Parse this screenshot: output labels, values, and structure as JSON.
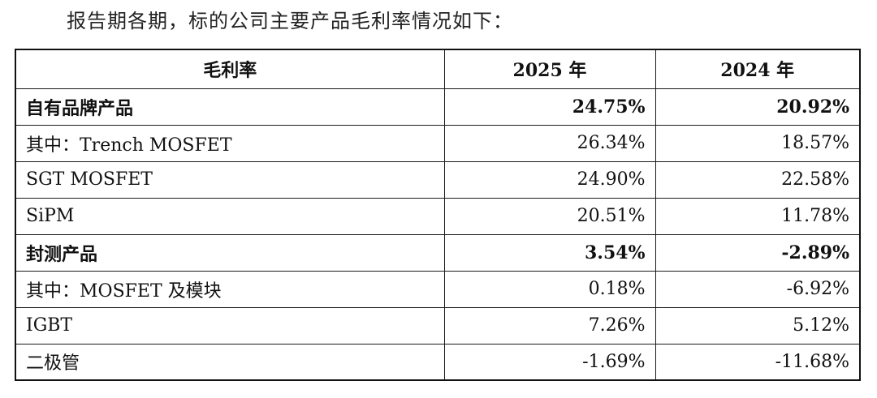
{
  "intro_text": "报告期各期，标的公司主要产品毛利率情况如下：",
  "table": {
    "headers": [
      "毛利率",
      "2025 年",
      "2024 年"
    ],
    "rows": [
      {
        "label": "自有品牌产品",
        "v2025": "24.75%",
        "v2024": "20.92%",
        "bold": true
      },
      {
        "label": "其中：Trench MOSFET",
        "v2025": "26.34%",
        "v2024": "18.57%",
        "bold": false
      },
      {
        "label": "SGT MOSFET",
        "v2025": "24.90%",
        "v2024": "22.58%",
        "bold": false
      },
      {
        "label": "SiPM",
        "v2025": "20.51%",
        "v2024": "11.78%",
        "bold": false
      },
      {
        "label": "封测产品",
        "v2025": "3.54%",
        "v2024": "-2.89%",
        "bold": true
      },
      {
        "label": "其中：MOSFET 及模块",
        "v2025": "0.18%",
        "v2024": "-6.92%",
        "bold": false
      },
      {
        "label": "IGBT",
        "v2025": "7.26%",
        "v2024": "5.12%",
        "bold": false
      },
      {
        "label": "二极管",
        "v2025": "-1.69%",
        "v2024": "-11.68%",
        "bold": false
      }
    ]
  }
}
